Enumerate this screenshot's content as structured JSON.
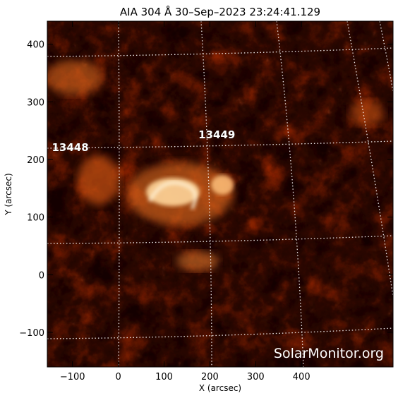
{
  "title": "AIA 304 Å 30–Sep–2023 23:24:41.129",
  "x_axis": {
    "label": "X (arcsec)",
    "ticks": [
      "−100",
      "0",
      "100",
      "200",
      "300",
      "400"
    ],
    "tick_values": [
      -100,
      0,
      100,
      200,
      300,
      400
    ],
    "range": [
      -155,
      600
    ]
  },
  "y_axis": {
    "label": "Y (arcsec)",
    "ticks": [
      "−100",
      "0",
      "100",
      "200",
      "300",
      "400"
    ],
    "tick_values": [
      -100,
      0,
      100,
      200,
      300,
      400
    ],
    "range": [
      -160,
      440
    ]
  },
  "active_regions": [
    {
      "label": "13448",
      "x": -145,
      "y": 215
    },
    {
      "label": "13449",
      "x": 175,
      "y": 237
    }
  ],
  "watermark": "SolarMonitor.org",
  "colors": {
    "background": "#ffffff",
    "frame": "#000000",
    "grid": "#ffffff",
    "colormap_dark": "#120000",
    "colormap_mid": "#a32a00",
    "colormap_bright": "#ffb860"
  }
}
